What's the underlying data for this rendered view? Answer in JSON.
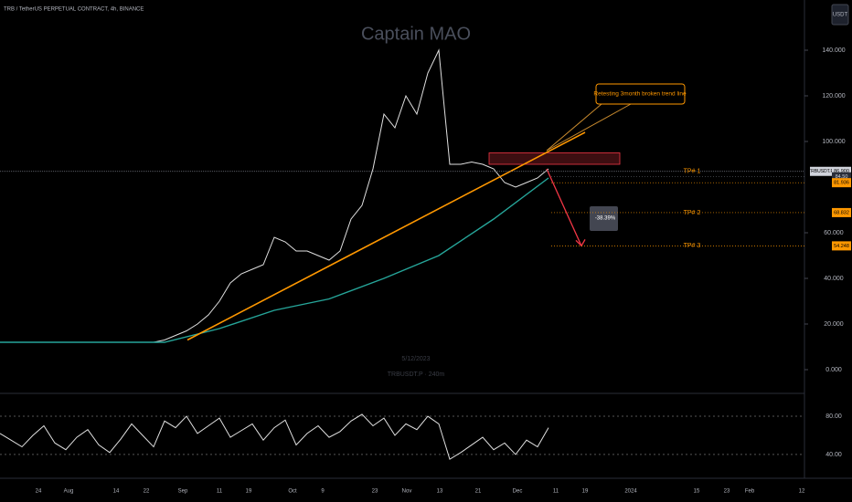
{
  "header": "TRB / TetherUS PERPETUAL CONTRACT, 4h, BINANCE",
  "watermark": "Captain MAO",
  "currency": "USDT",
  "footer": {
    "date": "5/12/2023",
    "symbol": "TRBUSDT.P · 240m"
  },
  "chart_data": [
    {
      "type": "line",
      "series": [
        {
          "color": "#e0e0e0",
          "values": [
            12,
            12,
            12,
            12,
            12,
            12,
            12,
            12,
            12,
            12,
            12,
            12,
            12,
            12,
            12,
            13,
            15,
            17,
            20,
            24,
            30,
            38,
            42,
            44,
            46,
            58,
            56,
            52,
            52,
            50,
            48,
            52,
            66,
            72,
            88,
            112,
            106,
            120,
            112,
            130,
            140,
            90,
            90,
            91,
            90,
            88,
            82,
            80,
            82,
            84,
            88
          ]
        },
        {
          "color": "#26a69a",
          "values": [
            12,
            12,
            12,
            12,
            18,
            26,
            31,
            40,
            50,
            66,
            84
          ]
        }
      ],
      "ylim": [
        -10,
        160
      ],
      "yticks": [
        {
          "value": 0,
          "label": "0.000"
        },
        {
          "value": 20,
          "label": "20.000"
        },
        {
          "value": 40,
          "label": "40.000"
        },
        {
          "value": 60,
          "label": "60.000"
        },
        {
          "value": 100,
          "label": "100.000"
        },
        {
          "value": 120,
          "label": "120.000"
        },
        {
          "value": 140,
          "label": "140.000"
        }
      ],
      "xticks": [
        "24",
        "Aug",
        "14",
        "22",
        "Sep",
        "11",
        "19",
        "Oct",
        "9",
        "23",
        "Nov",
        "13",
        "21",
        "Dec",
        "11",
        "19",
        "2024",
        "15",
        "23",
        "Feb",
        "12"
      ]
    },
    {
      "type": "line",
      "series": [
        {
          "color": "#e0e0e0",
          "values": [
            62,
            55,
            48,
            60,
            70,
            52,
            45,
            58,
            66,
            50,
            42,
            56,
            72,
            60,
            48,
            75,
            68,
            80,
            62,
            70,
            78,
            58,
            65,
            72,
            55,
            68,
            76,
            50,
            62,
            70,
            58,
            64,
            75,
            82,
            70,
            78,
            60,
            72,
            66,
            80,
            72,
            35,
            42,
            50,
            58,
            45,
            52,
            40,
            55,
            48,
            68
          ]
        }
      ],
      "ylim": [
        17,
        102
      ],
      "yticks": [
        {
          "value": 80,
          "label": "80.00"
        },
        {
          "value": 40,
          "label": "40.00"
        }
      ]
    }
  ],
  "annotations": {
    "callout": "Retesting 3month broken trend line",
    "measure": "-38.39%",
    "trendline": [
      13,
      104
    ],
    "zone": [
      90,
      95
    ],
    "arrow_from": 88,
    "targets": [
      {
        "name": "TP# 1",
        "value": 86.9,
        "label": "86.900",
        "symbol": "TRBUSDT.P"
      },
      {
        "name": "TP# 2",
        "value": 68.832,
        "label": "68.832"
      },
      {
        "name": "TP# 3",
        "value": 54.248,
        "label": "54.248"
      }
    ],
    "levels": [
      {
        "value": 84.5,
        "label": "84.50"
      },
      {
        "value": 81.936,
        "label": "81.936"
      }
    ]
  }
}
